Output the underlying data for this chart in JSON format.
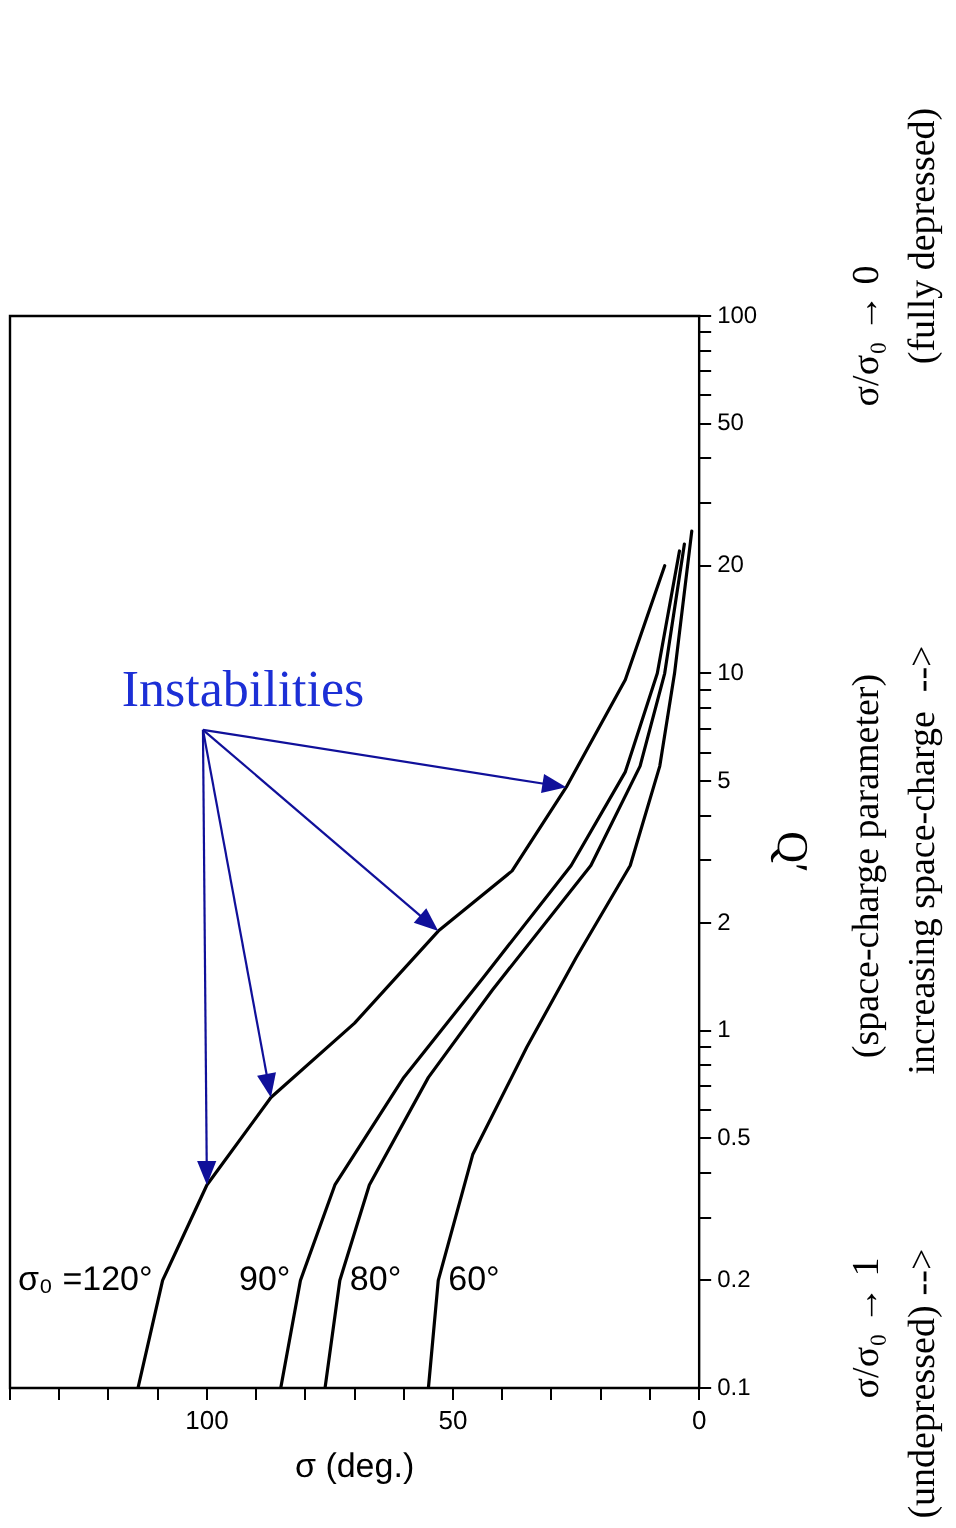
{
  "chart_data": {
    "type": "line",
    "xlabel": "σ (deg.)",
    "ylabel": "Q′",
    "log": "y",
    "grid": false,
    "legend": false,
    "marker": "none",
    "line_style": "solid",
    "xlim": [
      140,
      0
    ],
    "xticks": [
      0,
      {
        "value": 10,
        "label": null
      },
      {
        "value": 20,
        "label": null
      },
      {
        "value": 30,
        "label": null
      },
      {
        "value": 40,
        "label": null
      },
      50,
      {
        "value": 60,
        "label": null
      },
      {
        "value": 70,
        "label": null
      },
      {
        "value": 80,
        "label": null
      },
      {
        "value": 90,
        "label": null
      },
      100,
      {
        "value": 110,
        "label": null
      },
      {
        "value": 120,
        "label": null
      },
      {
        "value": 130,
        "label": null
      },
      {
        "value": 140,
        "label": null
      }
    ],
    "ylim": [
      0.1,
      100
    ],
    "yticks": [
      0.1,
      0.2,
      {
        "value": 0.3,
        "label": null
      },
      {
        "value": 0.4,
        "label": null
      },
      0.5,
      {
        "value": 0.6,
        "label": null
      },
      {
        "value": 0.7,
        "label": null
      },
      {
        "value": 0.8,
        "label": null
      },
      {
        "value": 0.9,
        "label": null
      },
      1,
      2,
      {
        "value": 3,
        "label": null
      },
      {
        "value": 4,
        "label": null
      },
      5,
      {
        "value": 6,
        "label": null
      },
      {
        "value": 7,
        "label": null
      },
      {
        "value": 8,
        "label": null
      },
      {
        "value": 9,
        "label": null
      },
      10,
      20,
      {
        "value": 30,
        "label": null
      },
      {
        "value": 40,
        "label": null
      },
      50,
      {
        "value": 60,
        "label": null
      },
      {
        "value": 70,
        "label": null
      },
      {
        "value": 80,
        "label": null
      },
      {
        "value": 90,
        "label": null
      },
      100
    ],
    "series": [
      {
        "name": "σ₀ =120°",
        "color": "#000000",
        "x": [
          114,
          109,
          100,
          87,
          70,
          53,
          38,
          27,
          15,
          7
        ],
        "values": [
          0.1,
          0.2,
          0.37,
          0.65,
          1.05,
          1.9,
          2.8,
          4.8,
          9.6,
          20
        ]
      },
      {
        "name": "90°",
        "color": "#000000",
        "x": [
          85,
          81,
          74,
          60,
          44,
          26,
          15,
          8.5,
          4
        ],
        "values": [
          0.1,
          0.2,
          0.37,
          0.74,
          1.4,
          2.9,
          5.3,
          10,
          22
        ]
      },
      {
        "name": "80°",
        "color": "#000000",
        "x": [
          76,
          73,
          67,
          55,
          42,
          22,
          12,
          7,
          3
        ],
        "values": [
          0.1,
          0.2,
          0.37,
          0.74,
          1.3,
          2.9,
          5.5,
          10,
          23
        ]
      },
      {
        "name": "60°",
        "color": "#000000",
        "x": [
          55,
          53,
          46,
          35,
          25,
          14,
          8,
          5,
          1.5
        ],
        "values": [
          0.1,
          0.2,
          0.45,
          0.9,
          1.6,
          2.9,
          5.5,
          10,
          25
        ]
      }
    ],
    "annotations": [
      "Instabilities",
      "σ/σ₀ → 1",
      "(undepressed)",
      "-->",
      "(space-charge parameter)",
      "increasing space-charge  -->",
      "σ/σ₀ → 0",
      "(fully depressed)"
    ]
  }
}
